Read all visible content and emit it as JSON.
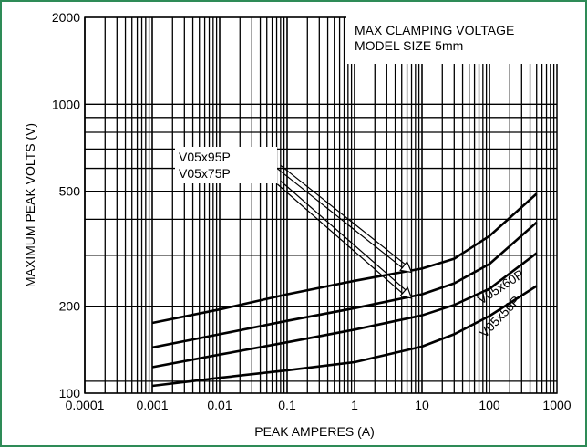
{
  "chart_data": {
    "type": "line",
    "xlabel": "PEAK AMPERES (A)",
    "ylabel": "MAXIMUM PEAK VOLTS (V)",
    "xscale": "log",
    "yscale": "log",
    "xlim": [
      0.0001,
      1000
    ],
    "ylim": [
      100,
      2000
    ],
    "x_ticks": [
      {
        "value": 0.0001,
        "label": "0.0001"
      },
      {
        "value": 0.001,
        "label": "0.001"
      },
      {
        "value": 0.01,
        "label": "0.01"
      },
      {
        "value": 0.1,
        "label": "0.1"
      },
      {
        "value": 1,
        "label": "1"
      },
      {
        "value": 10,
        "label": "10"
      },
      {
        "value": 100,
        "label": "100"
      },
      {
        "value": 1000,
        "label": "1000"
      }
    ],
    "y_ticks": [
      {
        "value": 100,
        "label": "100"
      },
      {
        "value": 200,
        "label": "200"
      },
      {
        "value": 500,
        "label": "500"
      },
      {
        "value": 1000,
        "label": "1000"
      },
      {
        "value": 2000,
        "label": "2000"
      }
    ],
    "y_gridlines": [
      100,
      110,
      200,
      300,
      400,
      500,
      600,
      700,
      800,
      900,
      1000,
      2000
    ],
    "grid": true,
    "note_lines": [
      "MAX CLAMPING VOLTAGE",
      "MODEL SIZE 5mm"
    ],
    "series": [
      {
        "name": "V05x95P",
        "x": [
          0.001,
          0.01,
          0.1,
          1,
          10,
          30,
          100,
          500
        ],
        "y": [
          175,
          195,
          220,
          245,
          270,
          292,
          350,
          490
        ]
      },
      {
        "name": "V05x75P",
        "x": [
          0.001,
          0.01,
          0.1,
          1,
          10,
          30,
          100,
          500
        ],
        "y": [
          144,
          160,
          178,
          197,
          220,
          240,
          280,
          390
        ]
      },
      {
        "name": "V05x60P",
        "x": [
          0.001,
          0.01,
          0.1,
          1,
          10,
          30,
          100,
          500
        ],
        "y": [
          123,
          136,
          150,
          166,
          186,
          202,
          230,
          305
        ]
      },
      {
        "name": "V05x50P",
        "x": [
          0.001,
          0.01,
          0.1,
          1,
          10,
          30,
          100,
          500
        ],
        "y": [
          106,
          113,
          120,
          128,
          145,
          160,
          185,
          235
        ]
      }
    ],
    "annotations": [
      {
        "text": "V05x95P",
        "points_to_series": "V05x95P"
      },
      {
        "text": "V05x75P",
        "points_to_series": "V05x75P"
      },
      {
        "text": "V05x60P",
        "attached_to_series": "V05x60P"
      },
      {
        "text": "V05x50P",
        "attached_to_series": "V05x50P"
      }
    ]
  }
}
